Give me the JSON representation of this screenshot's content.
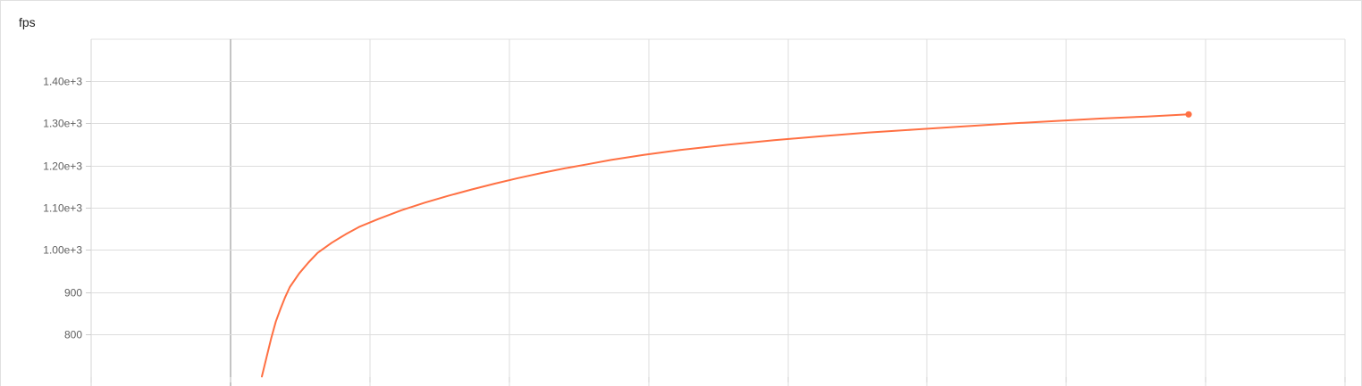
{
  "chart_data": {
    "type": "line",
    "title": "fps",
    "xlabel": "",
    "ylabel": "",
    "ylim": [
      700,
      1500
    ],
    "y_ticks": [
      800,
      900,
      1000,
      1100,
      1200,
      1300,
      1400
    ],
    "y_tick_labels": [
      "800",
      "900",
      "1.00e+3",
      "1.10e+3",
      "1.20e+3",
      "1.30e+3",
      "1.40e+3"
    ],
    "x_gridlines": 9,
    "grid": true,
    "color": "#ff7043",
    "series": [
      {
        "points": [
          [
            0.0,
            700
          ],
          [
            0.01,
            745
          ],
          [
            0.02,
            790
          ],
          [
            0.03,
            830
          ],
          [
            0.04,
            860
          ],
          [
            0.05,
            888
          ],
          [
            0.06,
            912
          ],
          [
            0.08,
            944
          ],
          [
            0.1,
            970
          ],
          [
            0.12,
            993
          ],
          [
            0.15,
            1017
          ],
          [
            0.18,
            1037
          ],
          [
            0.21,
            1055
          ],
          [
            0.25,
            1073
          ],
          [
            0.3,
            1094
          ],
          [
            0.35,
            1112
          ],
          [
            0.4,
            1128
          ],
          [
            0.45,
            1143
          ],
          [
            0.5,
            1157
          ],
          [
            0.55,
            1170
          ],
          [
            0.6,
            1182
          ],
          [
            0.65,
            1193
          ],
          [
            0.7,
            1203
          ],
          [
            0.75,
            1213
          ],
          [
            0.82,
            1225
          ],
          [
            0.9,
            1237
          ],
          [
            1.0,
            1249
          ],
          [
            1.1,
            1260
          ],
          [
            1.2,
            1269
          ],
          [
            1.3,
            1278
          ],
          [
            1.4,
            1285
          ],
          [
            1.5,
            1292
          ],
          [
            1.6,
            1299
          ],
          [
            1.7,
            1305
          ],
          [
            1.8,
            1311
          ],
          [
            1.9,
            1316
          ],
          [
            1.99,
            1321
          ]
        ]
      }
    ]
  }
}
